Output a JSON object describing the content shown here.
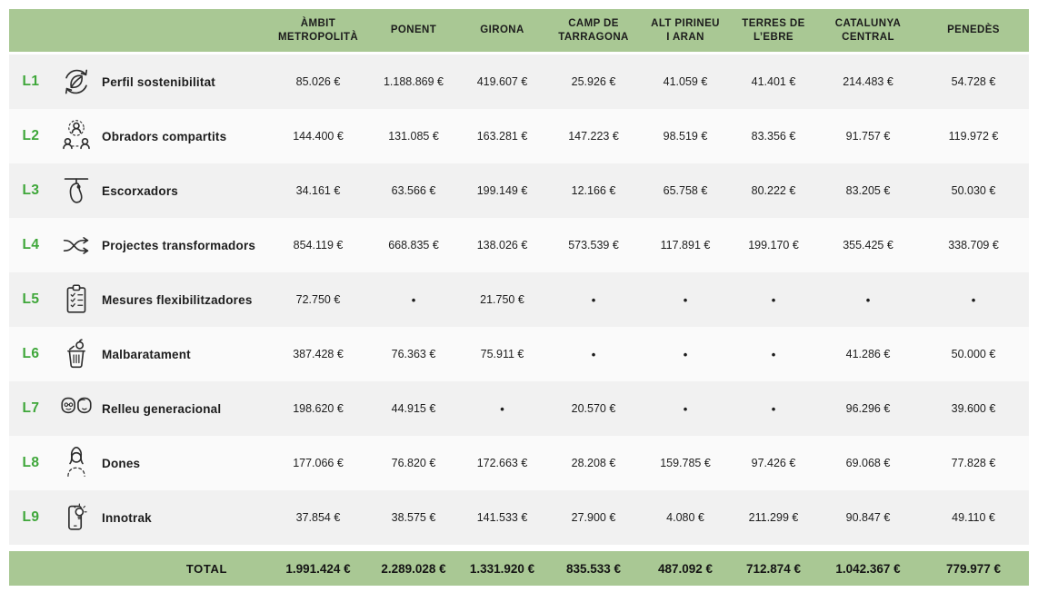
{
  "colors": {
    "header_green": "#a9c894",
    "row_odd": "#f1f1f1",
    "row_even": "#fafafa",
    "code_green": "#3fa73a",
    "icon_stroke": "#2d2d2d"
  },
  "table": {
    "columns": [
      "ÀMBIT\nMETROPOLITÀ",
      "PONENT",
      "GIRONA",
      "CAMP DE\nTARRAGONA",
      "ALT PIRINEU\nI ARAN",
      "TERRES DE\nL’EBRE",
      "CATALUNYA\nCENTRAL",
      "PENEDÈS"
    ],
    "rows": [
      {
        "code": "L1",
        "icon": "sustainability-leaf-cycle-icon",
        "label": "Perfil sostenibilitat",
        "values": [
          "85.026 €",
          "1.188.869 €",
          "419.607 €",
          "25.926 €",
          "41.059 €",
          "41.401 €",
          "214.483 €",
          "54.728 €"
        ]
      },
      {
        "code": "L2",
        "icon": "people-network-icon",
        "label": "Obradors compartits",
        "values": [
          "144.400 €",
          "131.085 €",
          "163.281 €",
          "147.223 €",
          "98.519 €",
          "83.356 €",
          "91.757 €",
          "119.972 €"
        ]
      },
      {
        "code": "L3",
        "icon": "hanging-meat-icon",
        "label": "Escorxadors",
        "values": [
          "34.161 €",
          "63.566 €",
          "199.149 €",
          "12.166 €",
          "65.758 €",
          "80.222 €",
          "83.205 €",
          "50.030 €"
        ]
      },
      {
        "code": "L4",
        "icon": "shuffle-arrows-icon",
        "label": "Projectes transformadors",
        "values": [
          "854.119 €",
          "668.835 €",
          "138.026 €",
          "573.539 €",
          "117.891 €",
          "199.170 €",
          "355.425 €",
          "338.709 €"
        ]
      },
      {
        "code": "L5",
        "icon": "checklist-clipboard-icon",
        "label": "Mesures flexibilitzadores",
        "values": [
          "72.750 €",
          "•",
          "21.750 €",
          "•",
          "•",
          "•",
          "•",
          "•"
        ]
      },
      {
        "code": "L6",
        "icon": "food-waste-bin-icon",
        "label": "Malbaratament",
        "values": [
          "387.428 €",
          "76.363 €",
          "75.911 €",
          "•",
          "•",
          "•",
          "41.286 €",
          "50.000 €"
        ]
      },
      {
        "code": "L7",
        "icon": "generations-faces-icon",
        "label": "Relleu generacional",
        "values": [
          "198.620 €",
          "44.915 €",
          "•",
          "20.570 €",
          "•",
          "•",
          "96.296 €",
          "39.600 €"
        ]
      },
      {
        "code": "L8",
        "icon": "woman-icon",
        "label": "Dones",
        "values": [
          "177.066 €",
          "76.820 €",
          "172.663 €",
          "28.208 €",
          "159.785 €",
          "97.426 €",
          "69.068 €",
          "77.828 €"
        ]
      },
      {
        "code": "L9",
        "icon": "phone-lightbulb-icon",
        "label": "Innotrak",
        "values": [
          "37.854 €",
          "38.575 €",
          "141.533 €",
          "27.900 €",
          "4.080 €",
          "211.299 €",
          "90.847 €",
          "49.110 €"
        ]
      }
    ],
    "total": {
      "label": "TOTAL",
      "values": [
        "1.991.424 €",
        "2.289.028 €",
        "1.331.920 €",
        "835.533 €",
        "487.092 €",
        "712.874 €",
        "1.042.367 €",
        "779.977 €"
      ]
    }
  }
}
